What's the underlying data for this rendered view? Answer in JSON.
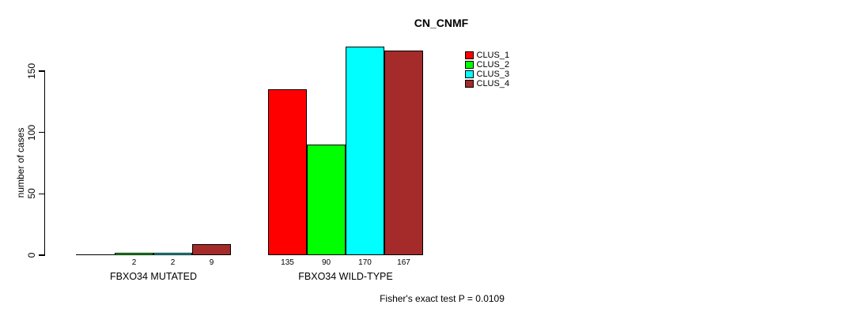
{
  "chart_data": {
    "type": "bar",
    "title": "CN_CNMF",
    "ylabel": "number of cases",
    "xlabel": "",
    "ylim": [
      0,
      170
    ],
    "yticks": [
      0,
      50,
      100,
      150
    ],
    "grid": false,
    "legend_position": "top-right-inside",
    "categories": [
      "FBXO34 MUTATED",
      "FBXO34 WILD-TYPE"
    ],
    "series": [
      {
        "name": "CLUS_1",
        "color": "#ff0000",
        "values": [
          0,
          135
        ]
      },
      {
        "name": "CLUS_2",
        "color": "#00ff00",
        "values": [
          2,
          90
        ]
      },
      {
        "name": "CLUS_3",
        "color": "#00ffff",
        "values": [
          2,
          170
        ]
      },
      {
        "name": "CLUS_4",
        "color": "#a52a2a",
        "values": [
          9,
          167
        ]
      }
    ],
    "bar_value_labels": [
      [
        "",
        "2",
        "2",
        "9"
      ],
      [
        "135",
        "90",
        "170",
        "167"
      ]
    ],
    "annotation": "Fisher's exact test P = 0.0109",
    "axis_color": "#000000",
    "text_color": "#000000"
  }
}
